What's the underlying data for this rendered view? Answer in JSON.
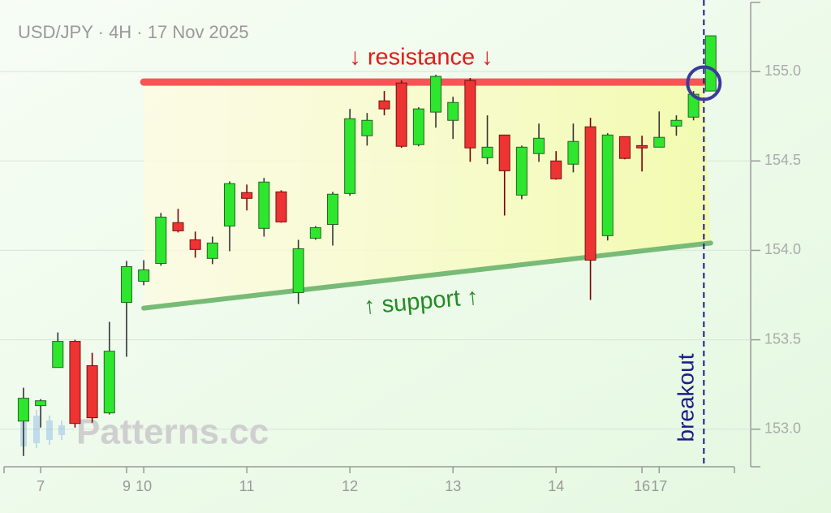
{
  "chart_data": {
    "type": "candlestick",
    "title": "USD/JPY · 4H · 17 Nov 2025",
    "watermark": "Patterns.cc",
    "xlim": [
      -1.13,
      41.38
    ],
    "xticks": [
      {
        "value": 1,
        "label": "7"
      },
      {
        "value": 6,
        "label": "9"
      },
      {
        "value": 7,
        "label": "10"
      },
      {
        "value": 13,
        "label": "11"
      },
      {
        "value": 19,
        "label": "12"
      },
      {
        "value": 25,
        "label": "13"
      },
      {
        "value": 31,
        "label": "14"
      },
      {
        "value": 36,
        "label": "16"
      },
      {
        "value": 37,
        "label": "17"
      }
    ],
    "ylim": [
      152.79,
      155.4
    ],
    "yticks": [
      {
        "value": 153,
        "label": "153.0"
      },
      {
        "value": 153.5,
        "label": "153.5"
      },
      {
        "value": 154,
        "label": "154.0"
      },
      {
        "value": 154.5,
        "label": "154.5"
      },
      {
        "value": 155,
        "label": "155.0"
      }
    ],
    "grid": true,
    "up_color": "#2ee62e",
    "down_color": "#ee3333",
    "x": [
      0,
      1,
      2,
      3,
      4,
      5,
      6,
      7,
      8,
      9,
      10,
      11,
      12,
      13,
      14,
      15,
      16,
      17,
      18,
      19,
      20,
      21,
      22,
      23,
      24,
      25,
      26,
      27,
      28,
      29,
      30,
      31,
      32,
      33,
      34,
      35,
      36,
      37,
      38,
      39,
      40
    ],
    "open": [
      153.045,
      153.132,
      153.345,
      153.491,
      153.355,
      153.091,
      153.709,
      153.827,
      153.927,
      154.155,
      154.059,
      153.955,
      154.136,
      154.323,
      154.123,
      154.327,
      153.764,
      154.068,
      154.145,
      154.318,
      154.641,
      154.836,
      154.936,
      154.591,
      154.773,
      154.727,
      154.95,
      154.518,
      154.645,
      154.309,
      154.541,
      154.5,
      154.482,
      154.691,
      154.082,
      154.636,
      154.586,
      154.577,
      154.695,
      154.745,
      154.891
    ],
    "high": [
      153.232,
      153.168,
      153.541,
      153.5,
      153.427,
      153.6,
      153.941,
      153.945,
      154.209,
      154.232,
      154.105,
      154.077,
      154.386,
      154.368,
      154.405,
      154.336,
      154.059,
      154.136,
      154.327,
      154.791,
      154.768,
      154.891,
      154.95,
      154.8,
      154.982,
      154.859,
      154.964,
      154.755,
      154.645,
      154.586,
      154.709,
      154.555,
      154.709,
      154.741,
      154.655,
      154.636,
      154.641,
      154.777,
      154.755,
      154.891,
      155.2
    ],
    "low": [
      152.85,
      153.009,
      153.345,
      153.009,
      153.036,
      153.082,
      153.405,
      153.805,
      153.914,
      154.1,
      153.959,
      153.923,
      153.995,
      154.223,
      154.077,
      154.155,
      153.7,
      154.059,
      154.027,
      154.305,
      154.586,
      154.755,
      154.573,
      154.582,
      154.686,
      154.623,
      154.495,
      154.482,
      154.195,
      154.286,
      154.495,
      154.395,
      154.436,
      153.723,
      154.055,
      154.509,
      154.441,
      154.577,
      154.641,
      154.727,
      154.891
    ],
    "close": [
      153.173,
      153.159,
      153.491,
      153.032,
      153.064,
      153.436,
      153.909,
      153.891,
      154.186,
      154.109,
      154.005,
      154.041,
      154.373,
      154.291,
      154.382,
      154.159,
      154.009,
      154.127,
      154.314,
      154.736,
      154.727,
      154.791,
      154.582,
      154.791,
      154.973,
      154.827,
      154.573,
      154.577,
      154.445,
      154.577,
      154.627,
      154.4,
      154.609,
      153.945,
      154.645,
      154.514,
      154.573,
      154.632,
      154.727,
      154.873,
      155.2
    ],
    "resistance": {
      "label": "↓ resistance ↓",
      "x": [
        7,
        39.6
      ],
      "y": [
        154.941,
        154.941
      ],
      "color": "#f55555"
    },
    "support": {
      "label": "↑ support ↑",
      "x": [
        7,
        40
      ],
      "y": [
        153.677,
        154.041
      ],
      "color": "#77bb77"
    },
    "breakout": {
      "label": "breakout",
      "x": 39.6,
      "y": 154.935,
      "color": "#1a1a8c"
    }
  }
}
